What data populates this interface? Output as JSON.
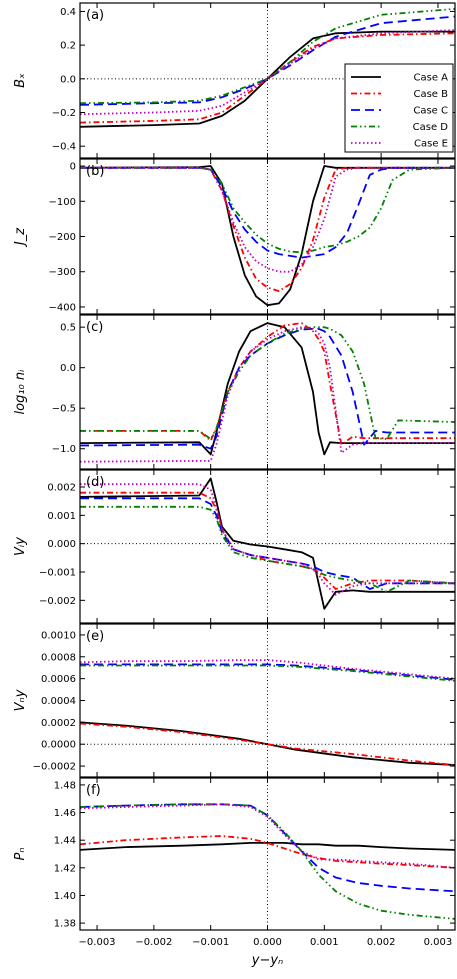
{
  "colors": {
    "Case A": "#000000",
    "Case B": "#ff0000",
    "Case C": "#0000ff",
    "Case D": "#008000",
    "Case E": "#bf00bf"
  },
  "legend": {
    "placement": "right-middle of panel (a)",
    "entries": [
      "Case A",
      "Case B",
      "Case C",
      "Case D",
      "Case E"
    ]
  },
  "x_axis": {
    "label": "y−yₙ",
    "range": [
      -0.0033,
      0.0033
    ],
    "ticks": [
      -0.003,
      -0.002,
      -0.001,
      0.0,
      0.001,
      0.002,
      0.003
    ],
    "tick_labels": [
      "−0.003",
      "−0.002",
      "−0.001",
      "0.000",
      "0.001",
      "0.002",
      "0.003"
    ]
  },
  "chart_data": [
    {
      "type": "line",
      "panel": "(a)",
      "ylabel": "Bₓ",
      "ylim": [
        -0.47,
        0.45
      ],
      "yticks": [
        -0.4,
        -0.2,
        0.0,
        0.2,
        0.4
      ],
      "ytick_labels": [
        "−0.4",
        "−0.2",
        "0.0",
        "0.2",
        "0.4"
      ],
      "zero_line": true,
      "x": [
        -0.0033,
        -0.002,
        -0.0012,
        -0.0008,
        -0.0004,
        0.0,
        0.0004,
        0.0008,
        0.0012,
        0.002,
        0.0033
      ],
      "series": [
        {
          "name": "Case A",
          "values": [
            -0.285,
            -0.275,
            -0.265,
            -0.22,
            -0.13,
            0.0,
            0.13,
            0.24,
            0.27,
            0.28,
            0.28
          ]
        },
        {
          "name": "Case B",
          "values": [
            -0.26,
            -0.25,
            -0.24,
            -0.2,
            -0.1,
            0.0,
            0.1,
            0.19,
            0.24,
            0.26,
            0.27
          ]
        },
        {
          "name": "Case C",
          "values": [
            -0.155,
            -0.145,
            -0.14,
            -0.11,
            -0.06,
            0.0,
            0.08,
            0.17,
            0.25,
            0.33,
            0.37
          ]
        },
        {
          "name": "Case D",
          "values": [
            -0.145,
            -0.14,
            -0.13,
            -0.1,
            -0.05,
            0.0,
            0.1,
            0.22,
            0.3,
            0.38,
            0.415
          ]
        },
        {
          "name": "Case E",
          "values": [
            -0.21,
            -0.2,
            -0.19,
            -0.16,
            -0.08,
            0.0,
            0.09,
            0.18,
            0.24,
            0.27,
            0.29
          ]
        }
      ]
    },
    {
      "type": "line",
      "panel": "(b)",
      "ylabel": "J_z",
      "ylim": [
        -420,
        20
      ],
      "yticks": [
        0,
        -100,
        -200,
        -300,
        -400
      ],
      "ytick_labels": [
        "0",
        "−100",
        "−200",
        "−300",
        "−400"
      ],
      "zero_line": false,
      "x": [
        -0.0033,
        -0.0012,
        -0.001,
        -0.0008,
        -0.0006,
        -0.0004,
        -0.0002,
        0.0,
        0.0002,
        0.0004,
        0.0006,
        0.0008,
        0.001,
        0.0012,
        0.0014,
        0.0016,
        0.0018,
        0.002,
        0.0022,
        0.0025,
        0.0033
      ],
      "series": [
        {
          "name": "Case A",
          "values": [
            -5,
            -3,
            0,
            -50,
            -200,
            -310,
            -370,
            -395,
            -390,
            -350,
            -250,
            -100,
            0,
            -5,
            -5,
            -5,
            -5,
            -5,
            -5,
            -5,
            -5
          ]
        },
        {
          "name": "Case B",
          "values": [
            -5,
            -5,
            -10,
            -70,
            -170,
            -260,
            -320,
            -345,
            -355,
            -335,
            -290,
            -210,
            -90,
            -10,
            -5,
            -5,
            -5,
            -5,
            -5,
            -5,
            -5
          ]
        },
        {
          "name": "Case C",
          "values": [
            -5,
            -5,
            -10,
            -60,
            -130,
            -180,
            -215,
            -240,
            -250,
            -255,
            -260,
            -255,
            -250,
            -230,
            -190,
            -110,
            -25,
            -10,
            -5,
            -5,
            -5
          ]
        },
        {
          "name": "Case D",
          "values": [
            -5,
            -5,
            -10,
            -50,
            -120,
            -160,
            -195,
            -220,
            -235,
            -243,
            -245,
            -240,
            -230,
            -225,
            -215,
            -200,
            -175,
            -120,
            -40,
            -10,
            -5
          ]
        },
        {
          "name": "Case E",
          "values": [
            -5,
            -5,
            -10,
            -70,
            -160,
            -230,
            -270,
            -290,
            -300,
            -300,
            -280,
            -230,
            -150,
            -30,
            -10,
            -5,
            -5,
            -5,
            -5,
            -5,
            -5
          ]
        }
      ]
    },
    {
      "type": "line",
      "panel": "(c)",
      "ylabel": "log₁₀ nᵢ",
      "ylim": [
        -1.25,
        0.65
      ],
      "yticks": [
        0.5,
        0.0,
        -0.5,
        -1.0
      ],
      "ytick_labels": [
        "0.5",
        "0.0",
        "−0.5",
        "−1.0"
      ],
      "zero_line": false,
      "x": [
        -0.0033,
        -0.0012,
        -0.001,
        -0.0009,
        -0.0007,
        -0.0005,
        -0.0003,
        0.0,
        0.0003,
        0.0006,
        0.0008,
        0.0009,
        0.001,
        0.0011,
        0.0013,
        0.0015,
        0.0017,
        0.0019,
        0.0021,
        0.0023,
        0.0033
      ],
      "series": [
        {
          "name": "Case A",
          "values": [
            -0.93,
            -0.92,
            -1.07,
            -0.8,
            -0.2,
            0.2,
            0.45,
            0.55,
            0.5,
            0.25,
            -0.3,
            -0.8,
            -1.07,
            -0.92,
            -0.93,
            -0.93,
            -0.93,
            -0.93,
            -0.93,
            -0.93,
            -0.93
          ]
        },
        {
          "name": "Case B",
          "values": [
            -0.78,
            -0.78,
            -0.9,
            -0.75,
            -0.3,
            0.0,
            0.2,
            0.38,
            0.52,
            0.55,
            0.45,
            0.35,
            0.2,
            -0.2,
            -0.95,
            -0.85,
            -0.87,
            -0.87,
            -0.87,
            -0.87,
            -0.87
          ]
        },
        {
          "name": "Case C",
          "values": [
            -0.96,
            -0.95,
            -1.0,
            -0.85,
            -0.3,
            0.0,
            0.15,
            0.3,
            0.4,
            0.47,
            0.48,
            0.48,
            0.45,
            0.38,
            0.15,
            -0.3,
            -0.95,
            -0.78,
            -0.8,
            -0.8,
            -0.8
          ]
        },
        {
          "name": "Case D",
          "values": [
            -0.78,
            -0.78,
            -0.88,
            -0.75,
            -0.3,
            -0.05,
            0.15,
            0.3,
            0.42,
            0.48,
            0.5,
            0.5,
            0.5,
            0.48,
            0.4,
            0.2,
            -0.2,
            -0.87,
            -0.88,
            -0.65,
            -0.67
          ]
        },
        {
          "name": "Case E",
          "values": [
            -1.16,
            -1.15,
            -1.15,
            -0.95,
            -0.35,
            0.0,
            0.2,
            0.35,
            0.45,
            0.5,
            0.48,
            0.42,
            0.3,
            0.0,
            -1.05,
            -0.95,
            -0.93,
            -0.93,
            -0.93,
            -0.93,
            -0.93
          ]
        }
      ]
    },
    {
      "type": "line",
      "panel": "(d)",
      "ylabel": "Vᵢy",
      "ylim": [
        -0.0028,
        0.0026
      ],
      "yticks": [
        0.002,
        0.001,
        0.0,
        -0.001,
        -0.002
      ],
      "ytick_labels": [
        "0.002",
        "0.001",
        "0.000",
        "−0.001",
        "−0.002"
      ],
      "zero_line": true,
      "x": [
        -0.0033,
        -0.0012,
        -0.001,
        -0.0009,
        -0.0008,
        -0.0006,
        -0.0003,
        0.0,
        0.0003,
        0.0006,
        0.0008,
        0.0009,
        0.001,
        0.0012,
        0.0015,
        0.0018,
        0.0021,
        0.0025,
        0.0033
      ],
      "series": [
        {
          "name": "Case A",
          "values": [
            0.00165,
            0.0017,
            0.0023,
            0.0015,
            0.0006,
            0.0001,
            -3e-05,
            -0.0001,
            -0.0002,
            -0.0003,
            -0.0005,
            -0.0014,
            -0.0023,
            -0.0017,
            -0.00165,
            -0.0017,
            -0.0017,
            -0.0017,
            -0.0017
          ]
        },
        {
          "name": "Case B",
          "values": [
            0.0018,
            0.0018,
            0.0016,
            0.0012,
            0.0005,
            -0.0002,
            -0.0004,
            -0.0006,
            -0.0007,
            -0.0008,
            -0.0009,
            -0.001,
            -0.0012,
            -0.0016,
            -0.0014,
            -0.0013,
            -0.0013,
            -0.0013,
            -0.0014
          ]
        },
        {
          "name": "Case C",
          "values": [
            0.0016,
            0.0016,
            0.0014,
            0.001,
            0.0004,
            -0.0002,
            -0.0004,
            -0.0005,
            -0.0006,
            -0.0007,
            -0.0008,
            -0.0009,
            -0.001,
            -0.0011,
            -0.0012,
            -0.0016,
            -0.0014,
            -0.0014,
            -0.0014
          ]
        },
        {
          "name": "Case D",
          "values": [
            0.0013,
            0.0013,
            0.0012,
            0.0009,
            0.0003,
            -0.0003,
            -0.0005,
            -0.0006,
            -0.0007,
            -0.0008,
            -0.0009,
            -0.001,
            -0.0011,
            -0.0012,
            -0.0013,
            -0.0014,
            -0.0017,
            -0.0013,
            -0.0014
          ]
        },
        {
          "name": "Case E",
          "values": [
            0.0021,
            0.0021,
            0.0019,
            0.0013,
            0.0005,
            -0.0002,
            -0.0004,
            -0.0005,
            -0.0006,
            -0.0007,
            -0.0009,
            -0.0011,
            -0.0014,
            -0.0018,
            -0.0015,
            -0.0014,
            -0.0014,
            -0.0014,
            -0.0014
          ]
        }
      ]
    },
    {
      "type": "line",
      "panel": "(e)",
      "ylabel": "Vₙy",
      "ylim": [
        -0.0003,
        0.0011
      ],
      "yticks": [
        0.001,
        0.0008,
        0.0006,
        0.0004,
        0.0002,
        0.0,
        -0.0002
      ],
      "ytick_labels": [
        "0.0010",
        "0.0008",
        "0.0006",
        "0.0004",
        "0.0002",
        "0.0000",
        "−0.0002"
      ],
      "zero_line": true,
      "x": [
        -0.0033,
        -0.0025,
        -0.0015,
        -0.0005,
        0.0,
        0.0005,
        0.0015,
        0.0025,
        0.0033
      ],
      "series": [
        {
          "name": "Case A",
          "values": [
            0.0002,
            0.00017,
            0.00012,
            5e-05,
            0.0,
            -5e-05,
            -0.00012,
            -0.00017,
            -0.00019
          ]
        },
        {
          "name": "Case B",
          "values": [
            0.00019,
            0.00016,
            0.00011,
            4e-05,
            0.0,
            -4e-05,
            -9e-05,
            -0.00015,
            -0.00019
          ]
        },
        {
          "name": "Case C",
          "values": [
            0.00073,
            0.00073,
            0.00073,
            0.00073,
            0.00073,
            0.00072,
            0.00068,
            0.00063,
            0.00059
          ]
        },
        {
          "name": "Case D",
          "values": [
            0.00072,
            0.00072,
            0.00072,
            0.00072,
            0.00072,
            0.00071,
            0.00067,
            0.00062,
            0.00058
          ]
        },
        {
          "name": "Case E",
          "values": [
            0.00075,
            0.00076,
            0.00076,
            0.00077,
            0.00077,
            0.00075,
            0.00069,
            0.00064,
            0.0006
          ]
        }
      ]
    },
    {
      "type": "line",
      "panel": "(f)",
      "ylabel": "Pₙ",
      "ylim": [
        1.375,
        1.485
      ],
      "yticks": [
        1.48,
        1.46,
        1.44,
        1.42,
        1.4,
        1.38
      ],
      "ytick_labels": [
        "1.48",
        "1.46",
        "1.44",
        "1.42",
        "1.40",
        "1.38"
      ],
      "zero_line": false,
      "x": [
        -0.0033,
        -0.0025,
        -0.0015,
        -0.0008,
        -0.0003,
        0.0,
        0.0003,
        0.0006,
        0.0009,
        0.0012,
        0.0016,
        0.002,
        0.0025,
        0.0033
      ],
      "series": [
        {
          "name": "Case A",
          "values": [
            1.433,
            1.435,
            1.436,
            1.437,
            1.438,
            1.438,
            1.438,
            1.437,
            1.437,
            1.436,
            1.436,
            1.435,
            1.434,
            1.433
          ]
        },
        {
          "name": "Case B",
          "values": [
            1.437,
            1.44,
            1.442,
            1.443,
            1.441,
            1.438,
            1.434,
            1.43,
            1.427,
            1.425,
            1.424,
            1.423,
            1.422,
            1.42
          ]
        },
        {
          "name": "Case C",
          "values": [
            1.464,
            1.465,
            1.466,
            1.466,
            1.465,
            1.458,
            1.445,
            1.432,
            1.42,
            1.413,
            1.409,
            1.407,
            1.405,
            1.403
          ]
        },
        {
          "name": "Case D",
          "values": [
            1.464,
            1.465,
            1.466,
            1.466,
            1.465,
            1.458,
            1.446,
            1.432,
            1.415,
            1.403,
            1.394,
            1.389,
            1.386,
            1.383
          ]
        },
        {
          "name": "Case E",
          "values": [
            1.463,
            1.464,
            1.465,
            1.466,
            1.464,
            1.457,
            1.444,
            1.432,
            1.426,
            1.426,
            1.425,
            1.424,
            1.423,
            1.42
          ]
        }
      ]
    }
  ]
}
